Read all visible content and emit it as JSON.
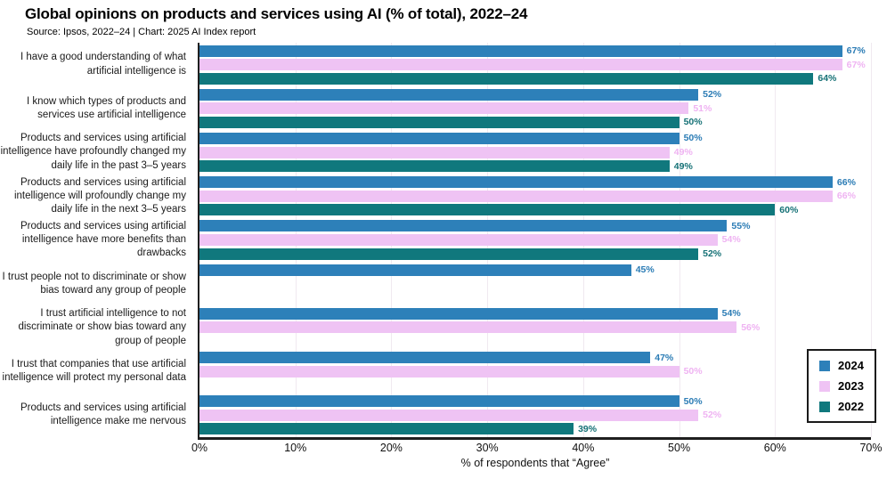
{
  "header": {
    "title": "Global opinions on products and services using AI (% of total), 2022–24",
    "source": "Source: Ipsos, 2022–24 | Chart: 2025 AI Index report"
  },
  "chart_data": {
    "type": "bar",
    "orientation": "horizontal",
    "title": "Global opinions on products and services using AI (% of total), 2022–24",
    "xlabel": "% of respondents that “Agree”",
    "xlim": [
      0,
      70
    ],
    "xticks": [
      0,
      10,
      20,
      30,
      40,
      50,
      60,
      70
    ],
    "xtick_labels": [
      "0%",
      "10%",
      "20%",
      "30%",
      "40%",
      "50%",
      "60%",
      "70%"
    ],
    "grid": "vertical-light",
    "legend_position": "right",
    "value_suffix": "%",
    "categories": [
      "I have a good understanding of what artificial intelligence is",
      "I know which types of products and services use artificial intelligence",
      "Products and services using artificial intelligence have profoundly changed my daily life in the past 3–5 years",
      "Products and services using artificial intelligence will profoundly change my daily life in the next 3–5 years",
      "Products and services using artificial intelligence have more benefits than drawbacks",
      "I trust people not to discriminate or show bias toward any group of people",
      "I trust artificial intelligence to not discriminate or show bias toward any group of people",
      "I trust that companies that use artificial intelligence will protect my personal data",
      "Products and services using artificial intelligence make me nervous"
    ],
    "series": [
      {
        "name": "2024",
        "color": "#2d80b9",
        "label_color": "#2b7cb5",
        "values": [
          67,
          52,
          50,
          66,
          55,
          45,
          54,
          47,
          50
        ]
      },
      {
        "name": "2023",
        "color": "#efc3f4",
        "label_color": "#efb3f2",
        "values": [
          67,
          51,
          49,
          66,
          54,
          null,
          56,
          50,
          52
        ]
      },
      {
        "name": "2022",
        "color": "#10787d",
        "label_color": "#157176",
        "values": [
          64,
          50,
          49,
          60,
          52,
          null,
          null,
          null,
          39
        ]
      }
    ]
  }
}
